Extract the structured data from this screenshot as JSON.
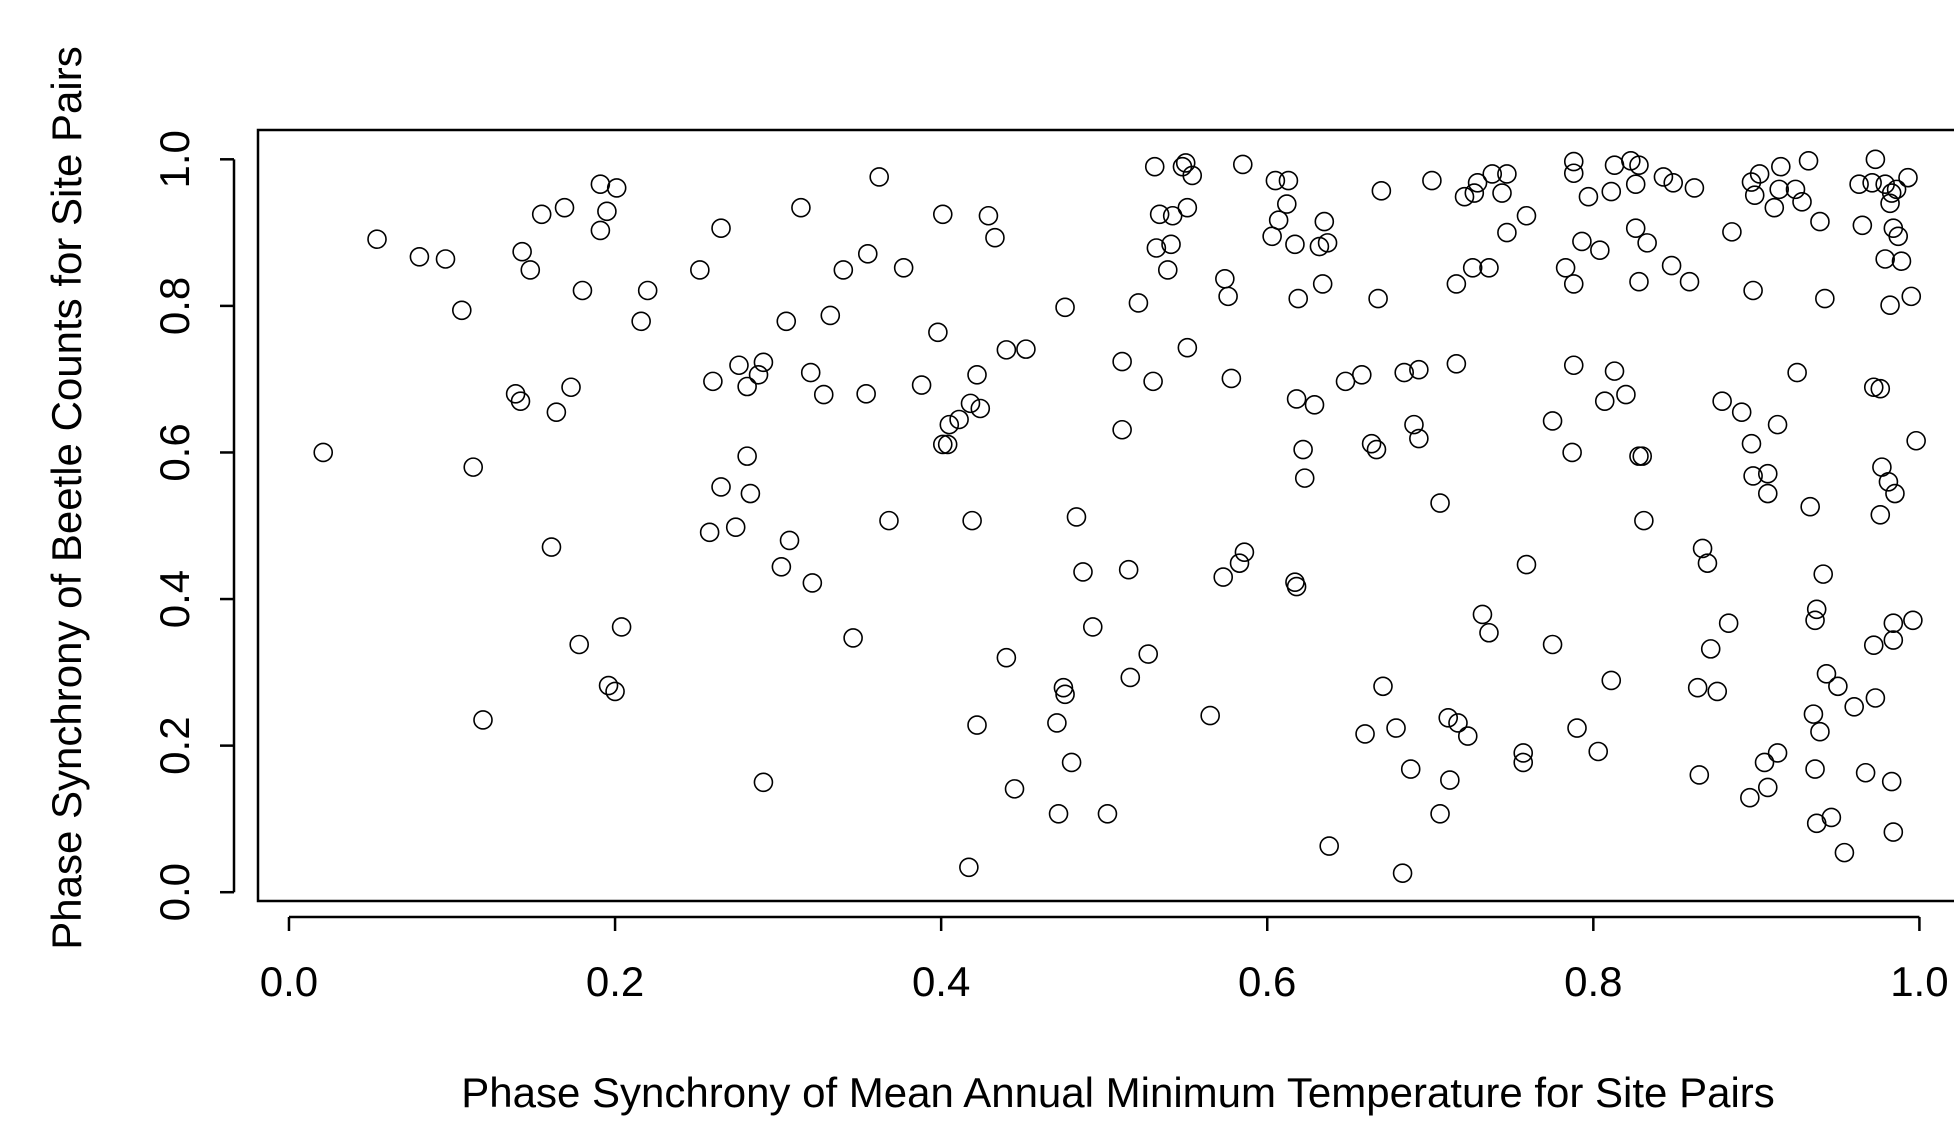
{
  "chart_data": {
    "type": "scatter",
    "x_label": "Phase Synchrony of Mean Annual Minimum Temperature for Site Pairs",
    "y_label": "Phase Synchrony of Beetle Counts for Site Pairs",
    "xlim": [
      -0.019,
      1.039
    ],
    "ylim": [
      -0.012,
      1.04
    ],
    "xticks": [
      {
        "value": 0,
        "label": "0.0"
      },
      0.2,
      0.4,
      0.6,
      0.8,
      {
        "value": 1,
        "label": "1.0"
      }
    ],
    "yticks": [
      {
        "value": 0,
        "label": "0.0"
      },
      0.2,
      0.4,
      0.6,
      0.8,
      {
        "value": 1,
        "label": "1.0"
      }
    ],
    "color": "#000000",
    "x": [
      0.021,
      0.054,
      0.08,
      0.096,
      0.106,
      0.113,
      0.119,
      0.139,
      0.142,
      0.143,
      0.148,
      0.155,
      0.161,
      0.164,
      0.169,
      0.173,
      0.178,
      0.18,
      0.191,
      0.191,
      0.195,
      0.201,
      0.196,
      0.2,
      0.204,
      0.216,
      0.22,
      0.252,
      0.258,
      0.26,
      0.265,
      0.265,
      0.274,
      0.276,
      0.281,
      0.281,
      0.283,
      0.288,
      0.291,
      0.291,
      0.302,
      0.305,
      0.307,
      0.314,
      0.32,
      0.321,
      0.328,
      0.332,
      0.34,
      0.346,
      0.354,
      0.355,
      0.362,
      0.368,
      0.377,
      0.388,
      0.398,
      0.401,
      0.401,
      0.404,
      0.405,
      0.411,
      0.417,
      0.418,
      0.419,
      0.422,
      0.422,
      0.424,
      0.429,
      0.433,
      0.44,
      0.44,
      0.445,
      0.452,
      0.471,
      0.472,
      0.475,
      0.476,
      0.476,
      0.48,
      0.483,
      0.487,
      0.493,
      0.502,
      0.511,
      0.511,
      0.515,
      0.516,
      0.521,
      0.527,
      0.53,
      0.531,
      0.532,
      0.534,
      0.539,
      0.541,
      0.542,
      0.548,
      0.55,
      0.551,
      0.551,
      0.554,
      0.565,
      0.573,
      0.574,
      0.576,
      0.578,
      0.583,
      0.585,
      0.586,
      0.603,
      0.605,
      0.607,
      0.612,
      0.613,
      0.617,
      0.617,
      0.618,
      0.618,
      0.619,
      0.622,
      0.623,
      0.629,
      0.632,
      0.635,
      0.634,
      0.637,
      0.638,
      0.648,
      0.658,
      0.66,
      0.664,
      0.667,
      0.668,
      0.67,
      0.671,
      0.679,
      0.683,
      0.684,
      0.688,
      0.69,
      0.693,
      0.693,
      0.701,
      0.706,
      0.706,
      0.711,
      0.712,
      0.716,
      0.716,
      0.717,
      0.721,
      0.723,
      0.726,
      0.727,
      0.729,
      0.732,
      0.736,
      0.736,
      0.738,
      0.744,
      0.747,
      0.747,
      0.757,
      0.757,
      0.759,
      0.759,
      0.775,
      0.775,
      0.783,
      0.787,
      0.788,
      0.788,
      0.788,
      0.788,
      0.79,
      0.793,
      0.797,
      0.803,
      0.804,
      0.807,
      0.811,
      0.811,
      0.813,
      0.813,
      0.82,
      0.823,
      0.826,
      0.826,
      0.828,
      0.828,
      0.828,
      0.83,
      0.831,
      0.833,
      0.843,
      0.848,
      0.849,
      0.859,
      0.862,
      0.864,
      0.865,
      0.867,
      0.87,
      0.872,
      0.876,
      0.879,
      0.883,
      0.885,
      0.891,
      0.896,
      0.897,
      0.898,
      0.898,
      0.897,
      0.899,
      0.902,
      0.905,
      0.907,
      0.907,
      0.907,
      0.911,
      0.913,
      0.913,
      0.914,
      0.915,
      0.924,
      0.925,
      0.928,
      0.932,
      0.933,
      0.935,
      0.936,
      0.936,
      0.937,
      0.937,
      0.939,
      0.939,
      0.941,
      0.942,
      0.943,
      0.946,
      0.95,
      0.954,
      0.96,
      0.963,
      0.965,
      0.967,
      0.971,
      0.972,
      0.972,
      0.973,
      0.973,
      0.976,
      0.976,
      0.977,
      0.979,
      0.979,
      0.981,
      0.982,
      0.982,
      0.983,
      0.983,
      0.984,
      0.984,
      0.985,
      0.984,
      0.984,
      0.986,
      0.987,
      0.989,
      0.993,
      0.995,
      0.996,
      0.998
    ],
    "values": [
      0.6,
      0.891,
      0.867,
      0.864,
      0.794,
      0.58,
      0.235,
      0.68,
      0.67,
      0.874,
      0.849,
      0.925,
      0.471,
      0.655,
      0.934,
      0.689,
      0.338,
      0.821,
      0.966,
      0.903,
      0.929,
      0.961,
      0.282,
      0.274,
      0.362,
      0.779,
      0.821,
      0.849,
      0.491,
      0.697,
      0.906,
      0.553,
      0.498,
      0.719,
      0.69,
      0.595,
      0.544,
      0.706,
      0.723,
      0.15,
      0.444,
      0.779,
      0.48,
      0.934,
      0.709,
      0.422,
      0.679,
      0.787,
      0.849,
      0.347,
      0.68,
      0.871,
      0.976,
      0.507,
      0.852,
      0.692,
      0.764,
      0.925,
      0.611,
      0.611,
      0.638,
      0.645,
      0.034,
      0.667,
      0.507,
      0.706,
      0.228,
      0.66,
      0.923,
      0.893,
      0.74,
      0.32,
      0.141,
      0.741,
      0.231,
      0.107,
      0.279,
      0.27,
      0.798,
      0.177,
      0.512,
      0.437,
      0.362,
      0.107,
      0.724,
      0.631,
      0.44,
      0.293,
      0.804,
      0.325,
      0.697,
      0.99,
      0.879,
      0.925,
      0.849,
      0.884,
      0.923,
      0.99,
      0.995,
      0.934,
      0.743,
      0.978,
      0.241,
      0.43,
      0.837,
      0.813,
      0.701,
      0.449,
      0.993,
      0.464,
      0.895,
      0.971,
      0.917,
      0.939,
      0.971,
      0.884,
      0.423,
      0.417,
      0.673,
      0.81,
      0.604,
      0.565,
      0.665,
      0.881,
      0.915,
      0.83,
      0.886,
      0.063,
      0.697,
      0.706,
      0.216,
      0.612,
      0.604,
      0.81,
      0.957,
      0.281,
      0.224,
      0.026,
      0.709,
      0.168,
      0.638,
      0.713,
      0.619,
      0.971,
      0.531,
      0.107,
      0.238,
      0.153,
      0.721,
      0.83,
      0.231,
      0.949,
      0.213,
      0.852,
      0.954,
      0.968,
      0.379,
      0.354,
      0.852,
      0.98,
      0.954,
      0.98,
      0.9,
      0.19,
      0.177,
      0.923,
      0.447,
      0.338,
      0.643,
      0.852,
      0.6,
      0.997,
      0.981,
      0.83,
      0.719,
      0.224,
      0.888,
      0.949,
      0.192,
      0.876,
      0.67,
      0.956,
      0.289,
      0.992,
      0.711,
      0.679,
      0.998,
      0.966,
      0.906,
      0.595,
      0.992,
      0.833,
      0.595,
      0.507,
      0.886,
      0.976,
      0.855,
      0.968,
      0.833,
      0.961,
      0.279,
      0.16,
      0.469,
      0.449,
      0.332,
      0.274,
      0.67,
      0.367,
      0.901,
      0.655,
      0.129,
      0.612,
      0.821,
      0.568,
      0.969,
      0.951,
      0.98,
      0.177,
      0.143,
      0.544,
      0.571,
      0.934,
      0.19,
      0.638,
      0.959,
      0.99,
      0.959,
      0.709,
      0.942,
      0.998,
      0.526,
      0.243,
      0.371,
      0.168,
      0.386,
      0.094,
      0.219,
      0.915,
      0.434,
      0.81,
      0.298,
      0.102,
      0.281,
      0.054,
      0.253,
      0.966,
      0.91,
      0.163,
      0.968,
      0.689,
      0.337,
      1.0,
      0.265,
      0.687,
      0.515,
      0.58,
      0.864,
      0.966,
      0.56,
      0.94,
      0.801,
      0.151,
      0.954,
      0.906,
      0.082,
      0.544,
      0.367,
      0.344,
      0.959,
      0.895,
      0.861,
      0.975,
      0.813,
      0.371,
      0.616
    ]
  }
}
